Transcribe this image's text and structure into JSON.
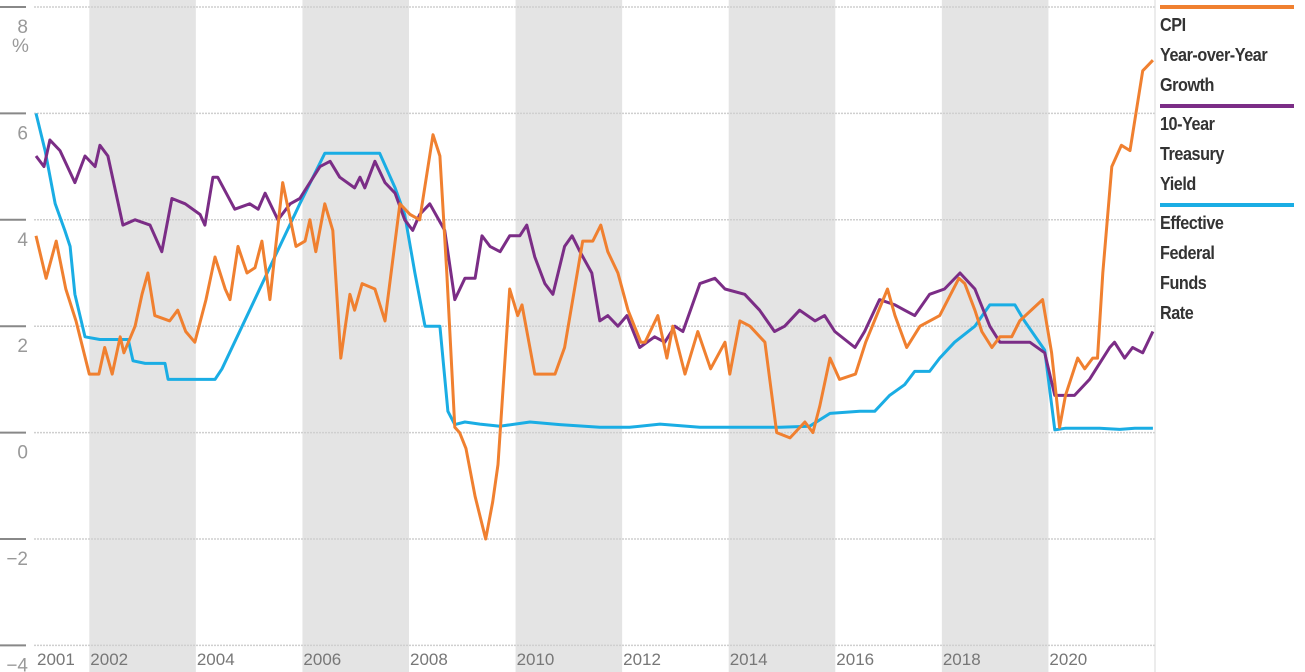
{
  "chart_data": {
    "type": "line",
    "title": "",
    "xlabel": "",
    "ylabel": "%",
    "xlim": [
      2001,
      2022
    ],
    "ylim": [
      -4.5,
      8
    ],
    "yticks": [
      8,
      6,
      4,
      2,
      0,
      -2,
      -4
    ],
    "ytick_labels": [
      "8",
      "6",
      "4",
      "2",
      "0",
      "−2",
      "−4"
    ],
    "xticks": [
      2001,
      2002,
      2004,
      2006,
      2008,
      2010,
      2012,
      2014,
      2016,
      2018,
      2020
    ],
    "xtick_labels": [
      "2001",
      "2002",
      "2004",
      "2006",
      "2008",
      "2010",
      "2012",
      "2014",
      "2016",
      "2018",
      "2020"
    ],
    "grid": true,
    "shaded_periods": [
      [
        2002,
        2004
      ],
      [
        2006,
        2008
      ],
      [
        2010,
        2012
      ],
      [
        2014,
        2016
      ],
      [
        2018,
        2020
      ]
    ],
    "shade_color": "#e4e4e4",
    "legend_position": "right",
    "series": [
      {
        "name": "CPI Year-over-Year Growth",
        "legend_lines": [
          "CPI",
          "Year-over-Year",
          "Growth"
        ],
        "color": "#f08030",
        "points": [
          [
            2001.0,
            3.7
          ],
          [
            2001.19,
            2.9
          ],
          [
            2001.38,
            3.6
          ],
          [
            2001.56,
            2.7
          ],
          [
            2001.75,
            2.1
          ],
          [
            2002.0,
            1.1
          ],
          [
            2002.18,
            1.1
          ],
          [
            2002.29,
            1.6
          ],
          [
            2002.43,
            1.1
          ],
          [
            2002.58,
            1.8
          ],
          [
            2002.65,
            1.5
          ],
          [
            2002.86,
            2.0
          ],
          [
            2002.99,
            2.6
          ],
          [
            2003.1,
            3.0
          ],
          [
            2003.23,
            2.2
          ],
          [
            2003.51,
            2.1
          ],
          [
            2003.66,
            2.3
          ],
          [
            2003.81,
            1.9
          ],
          [
            2003.98,
            1.7
          ],
          [
            2004.19,
            2.5
          ],
          [
            2004.36,
            3.3
          ],
          [
            2004.55,
            2.7
          ],
          [
            2004.64,
            2.5
          ],
          [
            2004.79,
            3.5
          ],
          [
            2004.96,
            3.0
          ],
          [
            2005.11,
            3.1
          ],
          [
            2005.24,
            3.6
          ],
          [
            2005.39,
            2.5
          ],
          [
            2005.63,
            4.7
          ],
          [
            2005.88,
            3.5
          ],
          [
            2006.05,
            3.6
          ],
          [
            2006.14,
            4.0
          ],
          [
            2006.25,
            3.4
          ],
          [
            2006.42,
            4.3
          ],
          [
            2006.57,
            3.8
          ],
          [
            2006.72,
            1.4
          ],
          [
            2006.89,
            2.6
          ],
          [
            2006.98,
            2.3
          ],
          [
            2007.12,
            2.8
          ],
          [
            2007.36,
            2.7
          ],
          [
            2007.55,
            2.1
          ],
          [
            2007.83,
            4.3
          ],
          [
            2008.02,
            4.1
          ],
          [
            2008.2,
            4.0
          ],
          [
            2008.45,
            5.6
          ],
          [
            2008.58,
            5.2
          ],
          [
            2008.71,
            3.0
          ],
          [
            2008.86,
            0.1
          ],
          [
            2008.95,
            0.0
          ],
          [
            2009.07,
            -0.3
          ],
          [
            2009.24,
            -1.2
          ],
          [
            2009.44,
            -2.0
          ],
          [
            2009.57,
            -1.3
          ],
          [
            2009.67,
            -0.6
          ],
          [
            2009.89,
            2.7
          ],
          [
            2010.04,
            2.2
          ],
          [
            2010.12,
            2.4
          ],
          [
            2010.36,
            1.1
          ],
          [
            2010.74,
            1.1
          ],
          [
            2010.92,
            1.6
          ],
          [
            2011.26,
            3.6
          ],
          [
            2011.45,
            3.6
          ],
          [
            2011.6,
            3.9
          ],
          [
            2011.73,
            3.4
          ],
          [
            2011.92,
            3.0
          ],
          [
            2012.11,
            2.3
          ],
          [
            2012.35,
            1.7
          ],
          [
            2012.43,
            1.7
          ],
          [
            2012.67,
            2.2
          ],
          [
            2012.84,
            1.4
          ],
          [
            2012.95,
            2.0
          ],
          [
            2013.18,
            1.1
          ],
          [
            2013.42,
            1.9
          ],
          [
            2013.66,
            1.2
          ],
          [
            2013.93,
            1.7
          ],
          [
            2014.02,
            1.1
          ],
          [
            2014.21,
            2.1
          ],
          [
            2014.4,
            2.0
          ],
          [
            2014.68,
            1.7
          ],
          [
            2014.9,
            0.0
          ],
          [
            2015.15,
            -0.1
          ],
          [
            2015.43,
            0.2
          ],
          [
            2015.58,
            0.0
          ],
          [
            2015.71,
            0.5
          ],
          [
            2015.9,
            1.4
          ],
          [
            2016.08,
            1.0
          ],
          [
            2016.38,
            1.1
          ],
          [
            2016.57,
            1.7
          ],
          [
            2016.98,
            2.7
          ],
          [
            2017.12,
            2.2
          ],
          [
            2017.34,
            1.6
          ],
          [
            2017.59,
            2.0
          ],
          [
            2017.96,
            2.2
          ],
          [
            2018.32,
            2.9
          ],
          [
            2018.43,
            2.8
          ],
          [
            2018.62,
            2.3
          ],
          [
            2018.75,
            1.9
          ],
          [
            2018.94,
            1.6
          ],
          [
            2019.09,
            1.8
          ],
          [
            2019.31,
            1.8
          ],
          [
            2019.46,
            2.1
          ],
          [
            2019.89,
            2.5
          ],
          [
            2020.06,
            1.5
          ],
          [
            2020.21,
            0.1
          ],
          [
            2020.32,
            0.7
          ],
          [
            2020.55,
            1.4
          ],
          [
            2020.68,
            1.2
          ],
          [
            2020.83,
            1.4
          ],
          [
            2020.92,
            1.4
          ],
          [
            2021.02,
            3.0
          ],
          [
            2021.19,
            5.0
          ],
          [
            2021.37,
            5.4
          ],
          [
            2021.53,
            5.3
          ],
          [
            2021.77,
            6.8
          ],
          [
            2021.96,
            7.0
          ]
        ]
      },
      {
        "name": "10-Year Treasury Yield",
        "legend_lines": [
          "10-Year",
          "Treasury",
          "Yield"
        ],
        "color": "#7b2d86",
        "points": [
          [
            2001.0,
            5.2
          ],
          [
            2001.15,
            5.0
          ],
          [
            2001.26,
            5.5
          ],
          [
            2001.45,
            5.3
          ],
          [
            2001.73,
            4.7
          ],
          [
            2001.92,
            5.2
          ],
          [
            2002.11,
            5.0
          ],
          [
            2002.2,
            5.4
          ],
          [
            2002.35,
            5.2
          ],
          [
            2002.63,
            3.9
          ],
          [
            2002.86,
            4.0
          ],
          [
            2003.14,
            3.9
          ],
          [
            2003.36,
            3.4
          ],
          [
            2003.55,
            4.4
          ],
          [
            2003.8,
            4.3
          ],
          [
            2004.08,
            4.1
          ],
          [
            2004.17,
            3.9
          ],
          [
            2004.32,
            4.8
          ],
          [
            2004.41,
            4.8
          ],
          [
            2004.73,
            4.2
          ],
          [
            2005.01,
            4.3
          ],
          [
            2005.17,
            4.2
          ],
          [
            2005.3,
            4.5
          ],
          [
            2005.54,
            4.0
          ],
          [
            2005.77,
            4.3
          ],
          [
            2005.95,
            4.4
          ],
          [
            2006.14,
            4.7
          ],
          [
            2006.33,
            5.0
          ],
          [
            2006.52,
            5.1
          ],
          [
            2006.7,
            4.8
          ],
          [
            2006.98,
            4.6
          ],
          [
            2007.08,
            4.8
          ],
          [
            2007.17,
            4.6
          ],
          [
            2007.36,
            5.1
          ],
          [
            2007.55,
            4.7
          ],
          [
            2007.74,
            4.5
          ],
          [
            2007.92,
            4.0
          ],
          [
            2008.07,
            3.8
          ],
          [
            2008.2,
            4.1
          ],
          [
            2008.39,
            4.3
          ],
          [
            2008.67,
            3.8
          ],
          [
            2008.86,
            2.5
          ],
          [
            2009.05,
            2.9
          ],
          [
            2009.24,
            2.9
          ],
          [
            2009.37,
            3.7
          ],
          [
            2009.52,
            3.5
          ],
          [
            2009.71,
            3.4
          ],
          [
            2009.89,
            3.7
          ],
          [
            2010.08,
            3.7
          ],
          [
            2010.21,
            3.9
          ],
          [
            2010.36,
            3.3
          ],
          [
            2010.55,
            2.8
          ],
          [
            2010.7,
            2.6
          ],
          [
            2010.92,
            3.5
          ],
          [
            2011.06,
            3.7
          ],
          [
            2011.21,
            3.4
          ],
          [
            2011.43,
            3.0
          ],
          [
            2011.58,
            2.1
          ],
          [
            2011.73,
            2.2
          ],
          [
            2011.92,
            2.0
          ],
          [
            2012.09,
            2.2
          ],
          [
            2012.33,
            1.6
          ],
          [
            2012.61,
            1.8
          ],
          [
            2012.8,
            1.7
          ],
          [
            2012.99,
            2.0
          ],
          [
            2013.14,
            1.9
          ],
          [
            2013.46,
            2.8
          ],
          [
            2013.74,
            2.9
          ],
          [
            2013.93,
            2.7
          ],
          [
            2014.3,
            2.6
          ],
          [
            2014.58,
            2.3
          ],
          [
            2014.86,
            1.9
          ],
          [
            2015.05,
            2.0
          ],
          [
            2015.33,
            2.3
          ],
          [
            2015.62,
            2.1
          ],
          [
            2015.8,
            2.2
          ],
          [
            2015.99,
            1.9
          ],
          [
            2016.37,
            1.6
          ],
          [
            2016.55,
            1.9
          ],
          [
            2016.83,
            2.5
          ],
          [
            2017.12,
            2.4
          ],
          [
            2017.3,
            2.3
          ],
          [
            2017.49,
            2.2
          ],
          [
            2017.77,
            2.6
          ],
          [
            2018.05,
            2.7
          ],
          [
            2018.34,
            3.0
          ],
          [
            2018.62,
            2.7
          ],
          [
            2018.9,
            2.0
          ],
          [
            2019.09,
            1.7
          ],
          [
            2019.37,
            1.7
          ],
          [
            2019.65,
            1.7
          ],
          [
            2019.93,
            1.5
          ],
          [
            2020.12,
            0.7
          ],
          [
            2020.31,
            0.7
          ],
          [
            2020.49,
            0.7
          ],
          [
            2020.77,
            1.0
          ],
          [
            2020.96,
            1.3
          ],
          [
            2021.15,
            1.6
          ],
          [
            2021.24,
            1.7
          ],
          [
            2021.43,
            1.4
          ],
          [
            2021.58,
            1.6
          ],
          [
            2021.77,
            1.5
          ],
          [
            2021.96,
            1.9
          ]
        ]
      },
      {
        "name": "Effective Federal Funds Rate",
        "legend_lines": [
          "Effective",
          "Federal",
          "Funds",
          "Rate"
        ],
        "color": "#1aade4",
        "points": [
          [
            2001.0,
            6.0
          ],
          [
            2001.17,
            5.3
          ],
          [
            2001.36,
            4.3
          ],
          [
            2001.54,
            3.8
          ],
          [
            2001.64,
            3.5
          ],
          [
            2001.73,
            2.6
          ],
          [
            2001.92,
            1.8
          ],
          [
            2002.2,
            1.75
          ],
          [
            2002.73,
            1.75
          ],
          [
            2002.82,
            1.35
          ],
          [
            2003.05,
            1.3
          ],
          [
            2003.42,
            1.3
          ],
          [
            2003.48,
            1.0
          ],
          [
            2003.89,
            1.0
          ],
          [
            2004.36,
            1.0
          ],
          [
            2004.49,
            1.2
          ],
          [
            2005.01,
            2.3
          ],
          [
            2005.48,
            3.3
          ],
          [
            2005.95,
            4.3
          ],
          [
            2006.42,
            5.25
          ],
          [
            2007.45,
            5.25
          ],
          [
            2007.74,
            4.6
          ],
          [
            2007.92,
            4.1
          ],
          [
            2008.11,
            3.0
          ],
          [
            2008.3,
            2.0
          ],
          [
            2008.58,
            2.0
          ],
          [
            2008.73,
            0.4
          ],
          [
            2008.86,
            0.15
          ],
          [
            2009.05,
            0.2
          ],
          [
            2009.33,
            0.16
          ],
          [
            2009.71,
            0.12
          ],
          [
            2010.27,
            0.2
          ],
          [
            2010.83,
            0.15
          ],
          [
            2011.58,
            0.1
          ],
          [
            2012.14,
            0.1
          ],
          [
            2012.71,
            0.16
          ],
          [
            2013.46,
            0.1
          ],
          [
            2014.96,
            0.1
          ],
          [
            2015.52,
            0.12
          ],
          [
            2015.9,
            0.36
          ],
          [
            2016.46,
            0.4
          ],
          [
            2016.74,
            0.4
          ],
          [
            2017.02,
            0.7
          ],
          [
            2017.3,
            0.9
          ],
          [
            2017.49,
            1.15
          ],
          [
            2017.77,
            1.15
          ],
          [
            2017.96,
            1.4
          ],
          [
            2018.24,
            1.7
          ],
          [
            2018.62,
            2.0
          ],
          [
            2018.9,
            2.4
          ],
          [
            2019.37,
            2.4
          ],
          [
            2019.55,
            2.1
          ],
          [
            2019.93,
            1.55
          ],
          [
            2020.12,
            0.05
          ],
          [
            2020.31,
            0.08
          ],
          [
            2020.96,
            0.08
          ],
          [
            2021.34,
            0.06
          ],
          [
            2021.62,
            0.08
          ],
          [
            2021.96,
            0.08
          ]
        ]
      }
    ]
  }
}
